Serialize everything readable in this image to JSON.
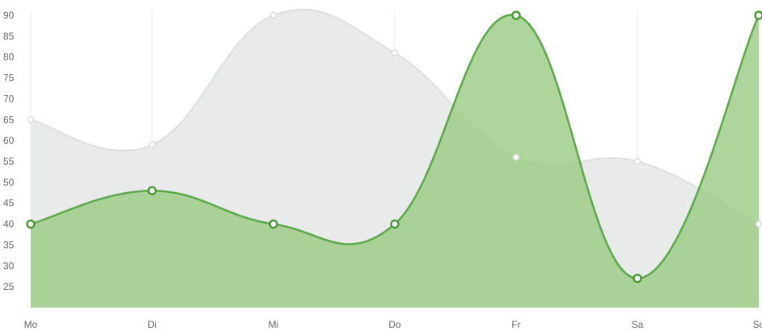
{
  "chart_data": {
    "type": "area",
    "categories": [
      "Mo",
      "Di",
      "Mi",
      "Do",
      "Fr",
      "Sa",
      "So"
    ],
    "ylim": [
      20,
      90
    ],
    "y_ticks": [
      25,
      30,
      35,
      40,
      45,
      50,
      55,
      60,
      65,
      70,
      75,
      80,
      85,
      90
    ],
    "grid": {
      "vertical": true,
      "horizontal": false
    },
    "series": [
      {
        "values": [
          65,
          59,
          90,
          81,
          56,
          55,
          40
        ],
        "fill": "#e9eaea",
        "stroke": "#dedede",
        "point_fill": "#ffffff",
        "point_stroke": "#dcdcdc"
      },
      {
        "values": [
          40,
          48,
          40,
          40,
          90,
          27,
          90
        ],
        "fill": "#9ccc86",
        "stroke": "#5da84a",
        "point_fill": "#ffffff",
        "point_stroke": "#4e9a3b"
      }
    ]
  }
}
